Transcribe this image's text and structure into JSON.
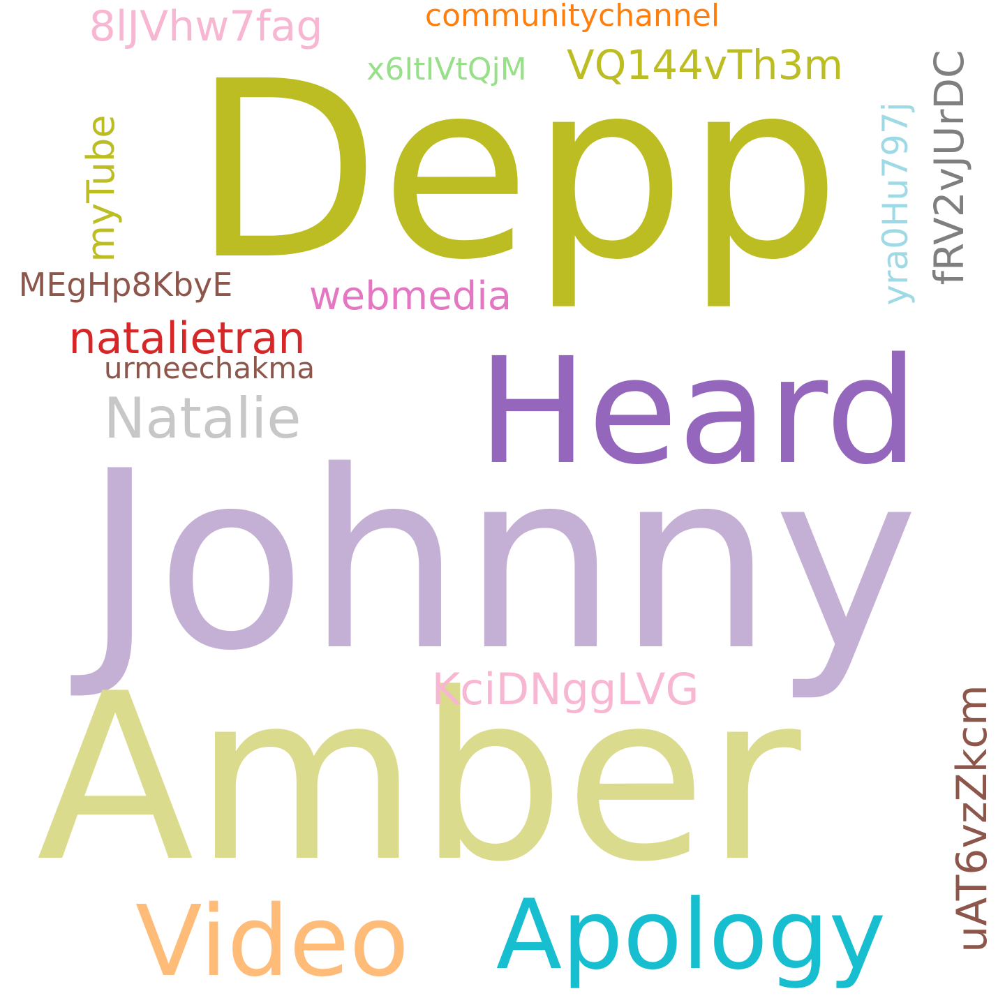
{
  "wordcloud": {
    "words": [
      {
        "text": "Johnny",
        "color": "#c5b0d5"
      },
      {
        "text": "Amber",
        "color": "#dbdb8d"
      },
      {
        "text": "Depp",
        "color": "#bcbd22"
      },
      {
        "text": "Heard",
        "color": "#9467bd"
      },
      {
        "text": "Apology",
        "color": "#17becf"
      },
      {
        "text": "Video",
        "color": "#ffbb78"
      },
      {
        "text": "Natalie",
        "color": "#c7c7c7"
      },
      {
        "text": "natalietran",
        "color": "#d62728"
      },
      {
        "text": "webmedia",
        "color": "#e377c2"
      },
      {
        "text": "urmeechakma",
        "color": "#8c564b"
      },
      {
        "text": "MEgHp8KbyE",
        "color": "#8c564b"
      },
      {
        "text": "myTube",
        "color": "#bcbd22"
      },
      {
        "text": "8lJVhw7fag",
        "color": "#f7b6d2"
      },
      {
        "text": "communitychannel",
        "color": "#ff7f0e"
      },
      {
        "text": "x6ItIVtQjM",
        "color": "#98df8a"
      },
      {
        "text": "VQ144vTh3m",
        "color": "#bcbd22"
      },
      {
        "text": "yra0Hu797j",
        "color": "#9edae5"
      },
      {
        "text": "fRV2vJUrDC",
        "color": "#7f7f7f"
      },
      {
        "text": "KciDNggLVG",
        "color": "#f7b6d2"
      },
      {
        "text": "uAT6vzZkcm",
        "color": "#8c564b"
      }
    ]
  }
}
